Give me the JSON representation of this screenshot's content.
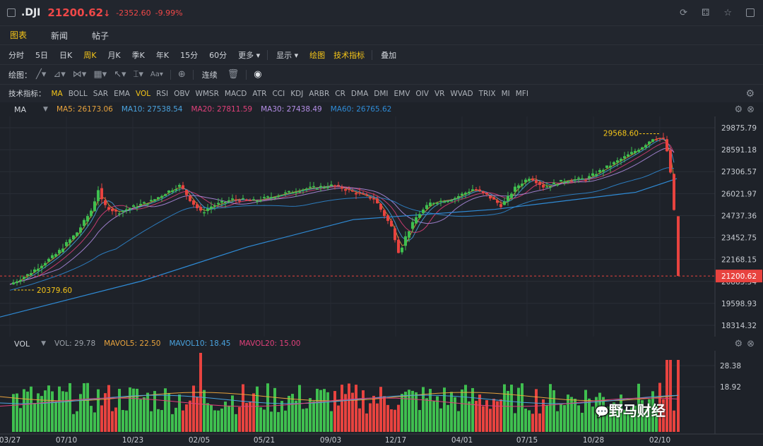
{
  "header": {
    "symbol": ".DJI",
    "price": "21200.62",
    "arrow": "↓",
    "change": "-2352.60",
    "pct": "-9.99%"
  },
  "tabs": [
    {
      "label": "图表"
    },
    {
      "label": "新闻"
    },
    {
      "label": "帖子"
    }
  ],
  "periods": [
    "分时",
    "5日",
    "日K",
    "周K",
    "月K",
    "季K",
    "年K",
    "15分",
    "60分",
    "更多"
  ],
  "period_active": "周K",
  "toolbar3": {
    "show": "显示",
    "draw": "绘图",
    "indicators": "技术指标",
    "overlay": "叠加"
  },
  "drawbar": {
    "label": "绘图：",
    "continuous": "连续"
  },
  "indicators": {
    "label": "技术指标：",
    "items": [
      "MA",
      "BOLL",
      "SAR",
      "EMA",
      "VOL",
      "RSI",
      "OBV",
      "WMSR",
      "MACD",
      "ATR",
      "CCI",
      "KDJ",
      "ARBR",
      "CR",
      "DMA",
      "DMI",
      "EMV",
      "OIV",
      "VR",
      "WVAD",
      "TRIX",
      "MI",
      "MFI"
    ],
    "active": [
      "MA",
      "VOL"
    ]
  },
  "ma": {
    "label": "MA",
    "items": [
      {
        "name": "MA5",
        "value": "26173.06",
        "color": "#e8a33d"
      },
      {
        "name": "MA10",
        "value": "27538.54",
        "color": "#4aa3df"
      },
      {
        "name": "MA20",
        "value": "27811.59",
        "color": "#e0407a"
      },
      {
        "name": "MA30",
        "value": "27438.49",
        "color": "#b48ee6"
      },
      {
        "name": "MA60",
        "value": "26765.62",
        "color": "#2f8bd6"
      }
    ]
  },
  "vol": {
    "label": "VOL",
    "items": [
      {
        "name": "VOL",
        "value": "29.78",
        "color": "#9aa0a8"
      },
      {
        "name": "MAVOL5",
        "value": "22.50",
        "color": "#e8a33d"
      },
      {
        "name": "MAVOL10",
        "value": "18.45",
        "color": "#4aa3df"
      },
      {
        "name": "MAVOL20",
        "value": "15.00",
        "color": "#e0407a"
      }
    ]
  },
  "price_axis": [
    "29875.79",
    "28591.18",
    "27306.57",
    "26021.97",
    "24737.36",
    "23452.75",
    "22168.15",
    "20883.54",
    "19598.93",
    "18314.32"
  ],
  "vol_axis": [
    "28.38",
    "18.92"
  ],
  "date_axis": [
    "03/27",
    "07/10",
    "10/23",
    "02/05",
    "05/21",
    "09/03",
    "12/17",
    "04/01",
    "07/15",
    "10/28",
    "02/10"
  ],
  "annotations": {
    "high": "29568.60",
    "low": "20379.60",
    "last": "21200.62"
  },
  "watermark": "野马财经",
  "chart_data": {
    "type": "candlestick",
    "y_range": [
      18314.32,
      29875.79
    ],
    "x_dates": [
      "03/27",
      "07/10",
      "10/23",
      "02/05",
      "05/21",
      "09/03",
      "12/17",
      "04/01",
      "07/15",
      "10/28",
      "02/10"
    ],
    "high": 29568.6,
    "low": 20379.6,
    "last": 21200.62,
    "colors": {
      "up": "#3fbf4f",
      "down": "#e8433f"
    }
  }
}
